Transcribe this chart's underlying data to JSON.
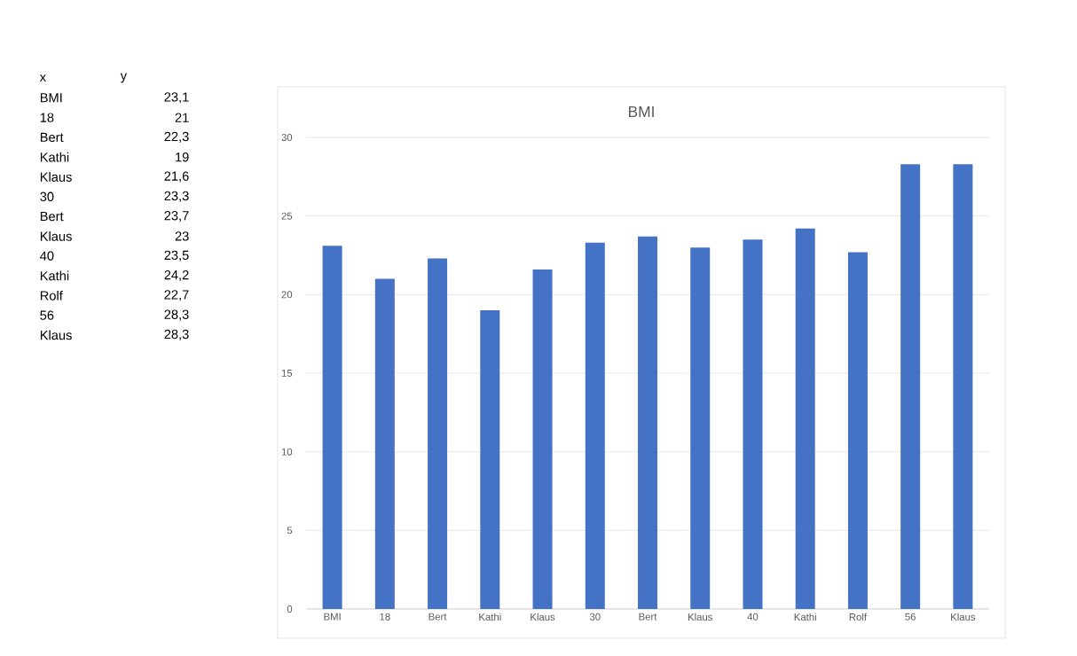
{
  "chart_data": {
    "type": "bar",
    "title": "BMI",
    "categories": [
      "BMI",
      "18",
      "Bert",
      "Kathi",
      "Klaus",
      "30",
      "Bert",
      "Klaus",
      "40",
      "Kathi",
      "Rolf",
      "56",
      "Klaus"
    ],
    "values": [
      23.1,
      21,
      22.3,
      19,
      21.6,
      23.3,
      23.7,
      23,
      23.5,
      24.2,
      22.7,
      28.3,
      28.3
    ],
    "annotations": [
      "x",
      "y",
      "23,1",
      "21",
      "22,3",
      "19",
      "21,6",
      "23,3",
      "23,7",
      "23",
      "23,5",
      "24,2",
      "22,7",
      "28,3",
      "28,3"
    ],
    "color": "#4472c4",
    "ylim": [
      0,
      30
    ],
    "yticks": [
      0,
      5,
      10,
      15,
      20,
      25,
      30
    ],
    "grid": "y"
  }
}
